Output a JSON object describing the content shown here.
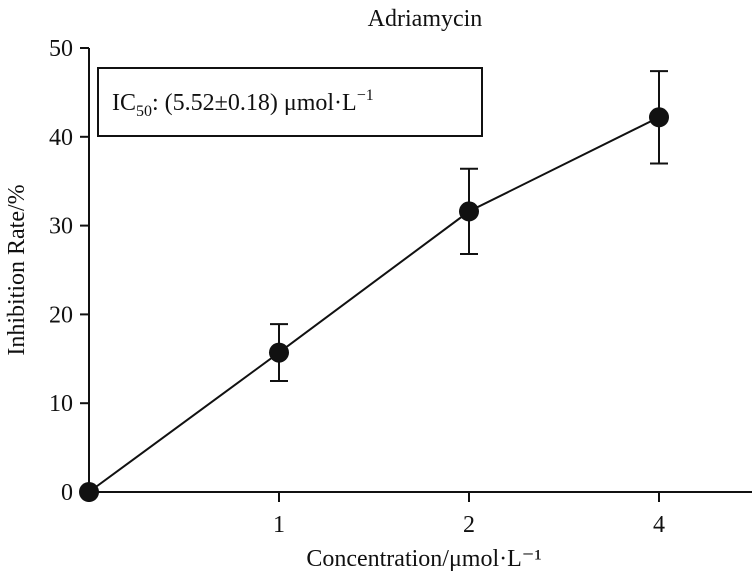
{
  "chart_data": {
    "type": "line",
    "title": "Adriamycin",
    "xlabel": "Concentration/μmol·L⁻¹",
    "ylabel": "Inhibition Rate/%",
    "x_categories": [
      "",
      "1",
      "2",
      "4"
    ],
    "ylim": [
      0,
      50
    ],
    "y_ticks": [
      "0",
      "10",
      "20",
      "30",
      "40",
      "50"
    ],
    "series": [
      {
        "values": [
          0,
          15.7,
          31.6,
          42.2
        ],
        "errors": [
          0,
          3.2,
          4.8,
          5.2
        ]
      }
    ],
    "annotation": {
      "prefix": "IC",
      "subscript": "50",
      "text": ": (5.52±0.18) μmol·L",
      "superscript": "−1"
    },
    "grid": false,
    "legend": "none"
  }
}
